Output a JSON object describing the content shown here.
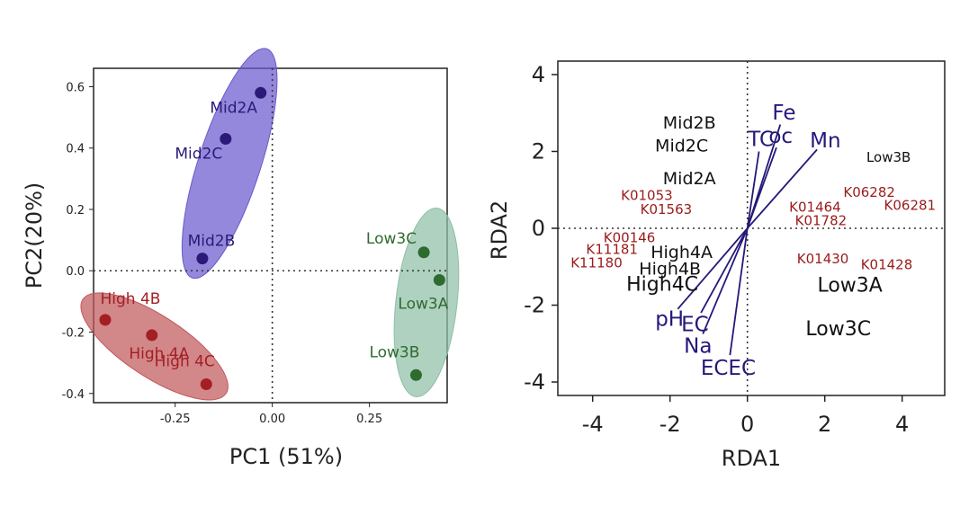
{
  "chart_data": [
    {
      "type": "scatter",
      "xlabel": "PC1 (51%)",
      "ylabel": "PC2(20%)",
      "xlim": [
        -0.46,
        0.45
      ],
      "ylim": [
        -0.43,
        0.66
      ],
      "xticks": [
        -0.25,
        0.0,
        0.25
      ],
      "xtick_labels": [
        "-0.25",
        "0.00",
        "0.25"
      ],
      "yticks": [
        -0.4,
        -0.2,
        0.0,
        0.2,
        0.4,
        0.6
      ],
      "ytick_labels": [
        "-0.4",
        "-0.2",
        "0.0",
        "0.2",
        "0.4",
        "0.6"
      ],
      "reference_lines": {
        "x": 0,
        "y": 0,
        "style": "dotted"
      },
      "groups": [
        {
          "color": "#2b1a78",
          "fill": "#6a5acd",
          "points": [
            {
              "label": "Mid2A",
              "x": -0.03,
              "y": 0.58
            },
            {
              "label": "Mid2C",
              "x": -0.12,
              "y": 0.43
            },
            {
              "label": "Mid2B",
              "x": -0.18,
              "y": 0.04
            }
          ]
        },
        {
          "color": "#a31f24",
          "fill": "#c0595c",
          "points": [
            {
              "label": "High 4B",
              "x": -0.43,
              "y": -0.16
            },
            {
              "label": "High 4A",
              "x": -0.31,
              "y": -0.21
            },
            {
              "label": "High 4C",
              "x": -0.17,
              "y": -0.37
            }
          ]
        },
        {
          "color": "#2e6b2e",
          "fill": "#8fbfa8",
          "points": [
            {
              "label": "Low3C",
              "x": 0.39,
              "y": 0.06
            },
            {
              "label": "Low3A",
              "x": 0.43,
              "y": -0.03
            },
            {
              "label": "Low3B",
              "x": 0.37,
              "y": -0.34
            }
          ]
        }
      ]
    },
    {
      "type": "scatter",
      "subtype": "biplot",
      "xlabel": "RDA1",
      "ylabel": "RDA2",
      "xlim": [
        -4.9,
        5.1
      ],
      "ylim": [
        -4.35,
        4.35
      ],
      "xticks": [
        -4,
        -2,
        0,
        2,
        4
      ],
      "xtick_labels": [
        "-4",
        "-2",
        "0",
        "2",
        "4"
      ],
      "yticks": [
        -4,
        -2,
        0,
        2,
        4
      ],
      "ytick_labels": [
        "-4",
        "-2",
        "0",
        "2",
        "4"
      ],
      "reference_lines": {
        "x": 0,
        "y": 0,
        "style": "dotted"
      },
      "sample_color": "#111111",
      "gene_color": "#9a1b1b",
      "env_color": "#24197a",
      "samples": [
        {
          "label": "Mid2B",
          "x": -1.5,
          "y": 2.75
        },
        {
          "label": "Mid2C",
          "x": -1.7,
          "y": 2.15
        },
        {
          "label": "Mid2A",
          "x": -1.5,
          "y": 1.3
        },
        {
          "label": "Low3B",
          "x": 3.65,
          "y": 1.85
        },
        {
          "label": "High4A",
          "x": -1.7,
          "y": -0.62
        },
        {
          "label": "High4B",
          "x": -2.0,
          "y": -1.05
        },
        {
          "label": "High4C",
          "x": -2.2,
          "y": -1.45
        },
        {
          "label": "Low3A",
          "x": 2.65,
          "y": -1.47
        },
        {
          "label": "Low3C",
          "x": 2.35,
          "y": -2.6
        }
      ],
      "genes": [
        {
          "label": "K01053",
          "x": -2.6,
          "y": 0.85
        },
        {
          "label": "K01563",
          "x": -2.1,
          "y": 0.49
        },
        {
          "label": "K06282",
          "x": 3.15,
          "y": 0.94
        },
        {
          "label": "K06281",
          "x": 4.2,
          "y": 0.6
        },
        {
          "label": "K01464",
          "x": 1.75,
          "y": 0.55
        },
        {
          "label": "K01782",
          "x": 1.9,
          "y": 0.2
        },
        {
          "label": "K00146",
          "x": -3.05,
          "y": -0.25
        },
        {
          "label": "K11181",
          "x": -3.5,
          "y": -0.55
        },
        {
          "label": "K11180",
          "x": -3.9,
          "y": -0.9
        },
        {
          "label": "K01430",
          "x": 1.95,
          "y": -0.8
        },
        {
          "label": "K01428",
          "x": 3.6,
          "y": -0.95
        }
      ],
      "vectors": [
        {
          "label": "Fe",
          "x": 0.85,
          "y": 2.7
        },
        {
          "label": "TC",
          "x": 0.3,
          "y": 2.0
        },
        {
          "label": "oc",
          "x": 0.75,
          "y": 2.1
        },
        {
          "label": "Mn",
          "x": 1.8,
          "y": 2.05
        },
        {
          "label": "pH",
          "x": -1.8,
          "y": -2.1
        },
        {
          "label": "EC",
          "x": -1.2,
          "y": -2.2
        },
        {
          "label": "Na",
          "x": -1.15,
          "y": -2.75
        },
        {
          "label": "ECEC",
          "x": -0.45,
          "y": -3.3
        }
      ]
    }
  ]
}
